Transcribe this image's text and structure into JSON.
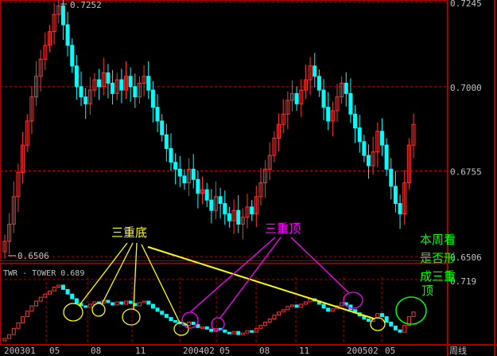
{
  "chart_data": {
    "type": "candlestick",
    "title": "",
    "ylim": [
      0.6506,
      0.7252
    ],
    "y_ticks": [
      "0.7245",
      "0.7000",
      "0.6755",
      "0.6506"
    ],
    "high_label": "0.7252",
    "low_label": "0.6506",
    "x_ticks": [
      "200301",
      "05",
      "08",
      "11",
      "200402",
      "05",
      "08",
      "11",
      "200502",
      "05"
    ],
    "period_label": "周线",
    "close": [
      0.655,
      0.66,
      0.668,
      0.675,
      0.683,
      0.69,
      0.697,
      0.703,
      0.708,
      0.712,
      0.716,
      0.721,
      0.7235,
      0.718,
      0.712,
      0.706,
      0.7,
      0.697,
      0.695,
      0.699,
      0.702,
      0.7,
      0.704,
      0.701,
      0.698,
      0.702,
      0.699,
      0.703,
      0.7,
      0.697,
      0.701,
      0.703,
      0.699,
      0.694,
      0.69,
      0.686,
      0.682,
      0.678,
      0.676,
      0.674,
      0.672,
      0.676,
      0.673,
      0.669,
      0.67,
      0.667,
      0.664,
      0.668,
      0.666,
      0.663,
      0.661,
      0.664,
      0.66,
      0.662,
      0.665,
      0.663,
      0.668,
      0.672,
      0.676,
      0.68,
      0.685,
      0.689,
      0.692,
      0.696,
      0.698,
      0.695,
      0.699,
      0.702,
      0.706,
      0.703,
      0.699,
      0.694,
      0.69,
      0.693,
      0.697,
      0.701,
      0.698,
      0.692,
      0.688,
      0.684,
      0.68,
      0.677,
      0.681,
      0.687,
      0.683,
      0.676,
      0.671,
      0.666,
      0.663,
      0.672,
      0.683,
      0.689
    ],
    "colors": {
      "up": "#ff3333",
      "down": "#00ffff",
      "grid": "#aa0000",
      "axis_text": "#c0c0c0"
    },
    "indicator": {
      "label": "TWR - TOWER 0.689",
      "tick": "0.719"
    },
    "annotations": {
      "triple_bottom": {
        "text": "三重底",
        "color": "#ffff00"
      },
      "triple_top": {
        "text": "三重顶",
        "color": "#ff00ff"
      },
      "question": {
        "lines": [
          "本周看",
          "是否形",
          "成三重",
          "顶"
        ],
        "color": "#00ff00"
      }
    }
  }
}
